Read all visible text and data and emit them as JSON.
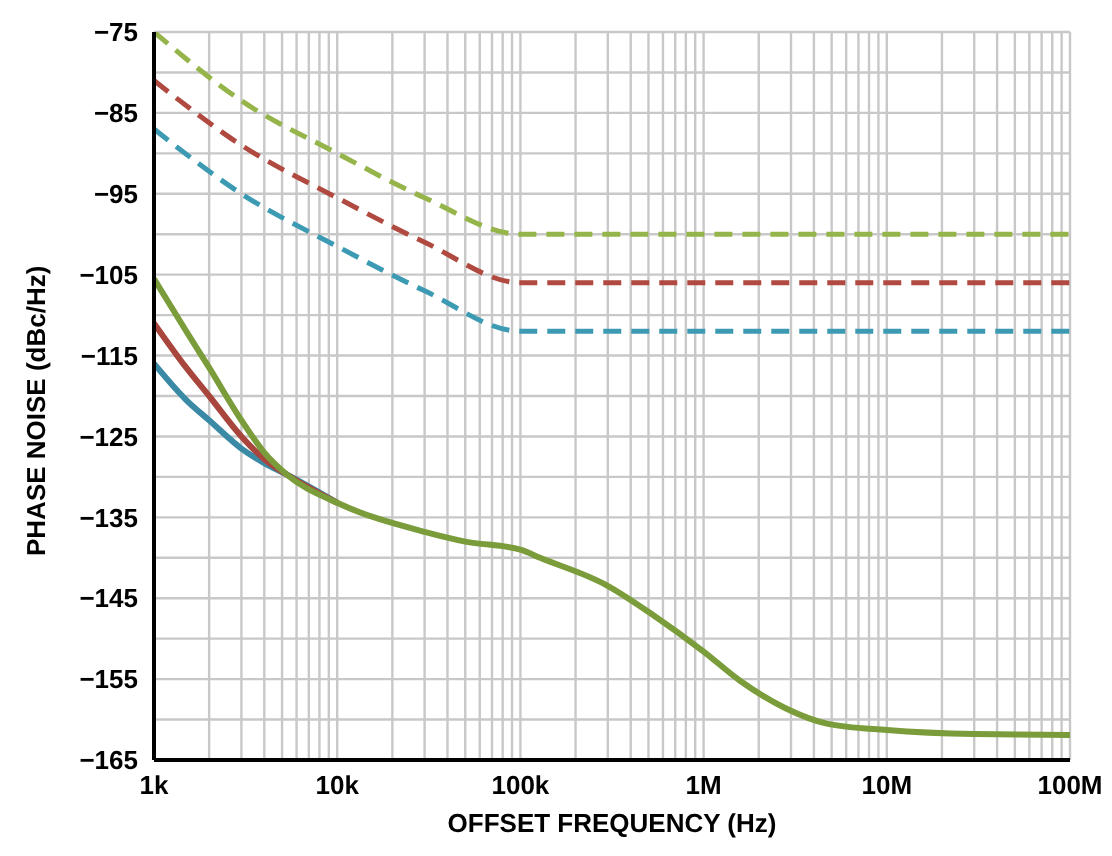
{
  "chart_data": {
    "type": "line",
    "xlabel": "OFFSET FREQUENCY (Hz)",
    "ylabel": "PHASE NOISE (dBc/Hz)",
    "log": "x",
    "grid": true,
    "legend": false,
    "marker": "none",
    "xlim": [
      1000,
      100000000
    ],
    "xticks": [
      {
        "value": 1000,
        "label": "1k"
      },
      {
        "value": 2000,
        "label": null
      },
      {
        "value": 3000,
        "label": null
      },
      {
        "value": 4000,
        "label": null
      },
      {
        "value": 5000,
        "label": null
      },
      {
        "value": 6000,
        "label": null
      },
      {
        "value": 7000,
        "label": null
      },
      {
        "value": 8000,
        "label": null
      },
      {
        "value": 9000,
        "label": null
      },
      {
        "value": 10000,
        "label": "10k"
      },
      {
        "value": 20000,
        "label": null
      },
      {
        "value": 30000,
        "label": null
      },
      {
        "value": 40000,
        "label": null
      },
      {
        "value": 50000,
        "label": null
      },
      {
        "value": 60000,
        "label": null
      },
      {
        "value": 70000,
        "label": null
      },
      {
        "value": 80000,
        "label": null
      },
      {
        "value": 90000,
        "label": null
      },
      {
        "value": 100000,
        "label": "100k"
      },
      {
        "value": 200000,
        "label": null
      },
      {
        "value": 300000,
        "label": null
      },
      {
        "value": 400000,
        "label": null
      },
      {
        "value": 500000,
        "label": null
      },
      {
        "value": 600000,
        "label": null
      },
      {
        "value": 700000,
        "label": null
      },
      {
        "value": 800000,
        "label": null
      },
      {
        "value": 900000,
        "label": null
      },
      {
        "value": 1000000,
        "label": "1M"
      },
      {
        "value": 2000000,
        "label": null
      },
      {
        "value": 3000000,
        "label": null
      },
      {
        "value": 4000000,
        "label": null
      },
      {
        "value": 5000000,
        "label": null
      },
      {
        "value": 6000000,
        "label": null
      },
      {
        "value": 7000000,
        "label": null
      },
      {
        "value": 8000000,
        "label": null
      },
      {
        "value": 9000000,
        "label": null
      },
      {
        "value": 10000000,
        "label": "10M"
      },
      {
        "value": 20000000,
        "label": null
      },
      {
        "value": 30000000,
        "label": null
      },
      {
        "value": 40000000,
        "label": null
      },
      {
        "value": 50000000,
        "label": null
      },
      {
        "value": 60000000,
        "label": null
      },
      {
        "value": 70000000,
        "label": null
      },
      {
        "value": 80000000,
        "label": null
      },
      {
        "value": 90000000,
        "label": null
      },
      {
        "value": 100000000,
        "label": "100M"
      }
    ],
    "ylim": [
      -165,
      -75
    ],
    "yticks": [
      -165,
      {
        "value": -160,
        "label": null
      },
      -155,
      {
        "value": -150,
        "label": null
      },
      -145,
      {
        "value": -140,
        "label": null
      },
      -135,
      {
        "value": -130,
        "label": null
      },
      -125,
      {
        "value": -120,
        "label": null
      },
      -115,
      {
        "value": -110,
        "label": null
      },
      -105,
      {
        "value": -100,
        "label": null
      },
      -95,
      {
        "value": -90,
        "label": null
      },
      -85,
      {
        "value": -80,
        "label": null
      },
      -75
    ],
    "series": [
      {
        "color": "#95b44a",
        "line_style": "dashed",
        "x": [
          1000,
          3000,
          10000,
          30000,
          100000,
          100000000
        ],
        "values": [
          -75,
          -83.5,
          -90,
          -95.5,
          -100,
          -100
        ]
      },
      {
        "color": "#b04a40",
        "line_style": "dashed",
        "x": [
          1000,
          3000,
          10000,
          30000,
          100000,
          100000000
        ],
        "values": [
          -81,
          -89,
          -95.5,
          -101,
          -106,
          -106
        ]
      },
      {
        "color": "#3c9bb3",
        "line_style": "dashed",
        "x": [
          1000,
          3000,
          10000,
          30000,
          100000,
          100000000
        ],
        "values": [
          -87,
          -95,
          -101.5,
          -107,
          -112,
          -112
        ]
      },
      {
        "color": "#3a8aa6",
        "line_style": "solid",
        "x": [
          1000,
          1500,
          2000,
          3000,
          4000,
          5300,
          10000
        ],
        "values": [
          -116,
          -120.5,
          -123,
          -126.5,
          -128.3,
          -129.7,
          -133.2
        ]
      },
      {
        "color": "#a8453c",
        "line_style": "solid",
        "x": [
          1000,
          1500,
          2000,
          3000,
          4000,
          5300,
          10000
        ],
        "values": [
          -111,
          -116.5,
          -120,
          -125,
          -127.8,
          -129.7,
          -133.2
        ]
      },
      {
        "color": "#7a9c3a",
        "line_style": "solid",
        "x": [
          1000,
          1500,
          2000,
          3000,
          4000,
          5300,
          10000,
          30000,
          50000,
          100000,
          128000,
          296000,
          532000,
          1000000,
          1580000,
          2800000,
          4700000,
          10000000,
          30000000,
          100000000
        ],
        "values": [
          -105.5,
          -112,
          -116.5,
          -123,
          -127,
          -129.7,
          -133.2,
          -136.8,
          -138,
          -139,
          -140,
          -143.4,
          -147.1,
          -151.6,
          -155.2,
          -158.6,
          -160.5,
          -161.3,
          -161.8,
          -161.9
        ]
      }
    ]
  }
}
